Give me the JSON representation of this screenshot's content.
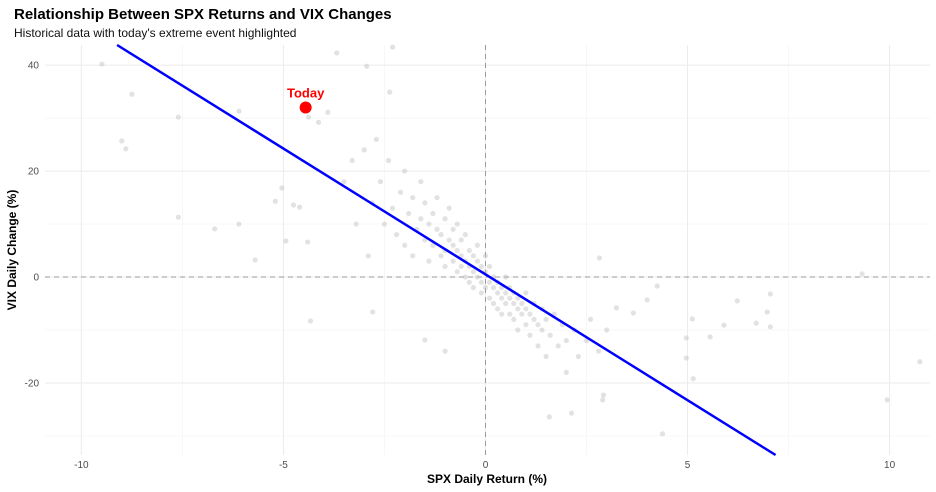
{
  "chart_data": {
    "type": "scatter",
    "title": "Relationship Between SPX Returns and VIX Changes",
    "subtitle": "Historical data with today's extreme event highlighted",
    "xlabel": "SPX Daily Return (%)",
    "ylabel": "VIX Daily Change (%)",
    "xlim": [
      -10.9,
      11.0
    ],
    "ylim": [
      -33.6,
      43.8
    ],
    "xticks": [
      -10,
      -5,
      0,
      5,
      10
    ],
    "yticks": [
      -20,
      0,
      20,
      40
    ],
    "grid": true,
    "reference_lines": {
      "x": 0,
      "y": 0,
      "style": "dashed"
    },
    "colors": {
      "points": "#bebebe",
      "regression": "#0000ff",
      "highlight": "#ff0000",
      "reference": "#999999"
    },
    "regression": {
      "intercept": 0.5,
      "slope": -4.75
    },
    "highlight": {
      "label": "Today",
      "x": -4.45,
      "y": 32
    },
    "points": [
      [
        -9.49,
        40.2
      ],
      [
        -8.75,
        34.5
      ],
      [
        -9.0,
        25.7
      ],
      [
        -8.9,
        24.2
      ],
      [
        -7.6,
        30.2
      ],
      [
        -7.6,
        11.3
      ],
      [
        -6.7,
        9.1
      ],
      [
        -6.1,
        31.3
      ],
      [
        -6.1,
        10
      ],
      [
        -5.7,
        3.2
      ],
      [
        -5.2,
        14.3
      ],
      [
        -5.04,
        16.8
      ],
      [
        -4.94,
        6.8
      ],
      [
        -4.75,
        13.6
      ],
      [
        -4.6,
        13.2
      ],
      [
        -4.4,
        6.6
      ],
      [
        -4.33,
        -8.3
      ],
      [
        -4.38,
        30.2
      ],
      [
        -4.13,
        29.2
      ],
      [
        -3.68,
        42.3
      ],
      [
        -3.9,
        31.1
      ],
      [
        -2.94,
        39.8
      ],
      [
        -2.3,
        43.4
      ],
      [
        -2.79,
        -6.6
      ],
      [
        -2.37,
        34.9
      ],
      [
        -1.5,
        -11.9
      ],
      [
        -1.0,
        -14
      ],
      [
        1.58,
        -26.4
      ],
      [
        2.13,
        -25.7
      ],
      [
        2.92,
        -22.3
      ],
      [
        2.9,
        -23.2
      ],
      [
        4.38,
        -29.6
      ],
      [
        5.14,
        -19.2
      ],
      [
        4.97,
        -15.3
      ],
      [
        5.12,
        -7.9
      ],
      [
        5.56,
        -11.3
      ],
      [
        6.23,
        -4.5
      ],
      [
        7.05,
        -3.2
      ],
      [
        7.05,
        -9.4
      ],
      [
        6.97,
        -6.6
      ],
      [
        6.7,
        -8.7
      ],
      [
        5.9,
        -9.1
      ],
      [
        9.94,
        -23.2
      ],
      [
        9.32,
        0.6
      ],
      [
        10.75,
        -16
      ],
      [
        2.82,
        3.6
      ],
      [
        3.24,
        -5.8
      ],
      [
        3.66,
        -6.8
      ],
      [
        4.0,
        -4.3
      ],
      [
        4.25,
        -1.7
      ],
      [
        4.97,
        -11.5
      ],
      [
        -2.8,
        14
      ],
      [
        -2.6,
        18
      ],
      [
        -2.5,
        10
      ],
      [
        -2.4,
        22
      ],
      [
        -2.3,
        13
      ],
      [
        -2.2,
        8
      ],
      [
        -2.1,
        16
      ],
      [
        -2,
        20
      ],
      [
        -2,
        6
      ],
      [
        -1.9,
        12
      ],
      [
        -1.8,
        15
      ],
      [
        -1.8,
        4
      ],
      [
        -1.7,
        9
      ],
      [
        -1.6,
        18
      ],
      [
        -1.6,
        11
      ],
      [
        -1.5,
        7
      ],
      [
        -1.5,
        14
      ],
      [
        -1.4,
        3
      ],
      [
        -1.4,
        10
      ],
      [
        -1.3,
        12
      ],
      [
        -1.3,
        6
      ],
      [
        -1.2,
        9
      ],
      [
        -1.2,
        15
      ],
      [
        -1.1,
        4
      ],
      [
        -1.1,
        8
      ],
      [
        -1,
        11
      ],
      [
        -1,
        5
      ],
      [
        -1,
        2
      ],
      [
        -0.9,
        7
      ],
      [
        -0.9,
        13
      ],
      [
        -0.8,
        3
      ],
      [
        -0.8,
        6
      ],
      [
        -0.8,
        9
      ],
      [
        -0.7,
        1
      ],
      [
        -0.7,
        5
      ],
      [
        -0.7,
        10
      ],
      [
        -0.6,
        2
      ],
      [
        -0.6,
        7
      ],
      [
        -0.6,
        4
      ],
      [
        -0.5,
        0
      ],
      [
        -0.5,
        3
      ],
      [
        -0.5,
        8
      ],
      [
        -0.4,
        -1
      ],
      [
        -0.4,
        2
      ],
      [
        -0.4,
        5
      ],
      [
        -0.3,
        1
      ],
      [
        -0.3,
        4
      ],
      [
        -0.3,
        -2
      ],
      [
        -0.2,
        0
      ],
      [
        -0.2,
        3
      ],
      [
        -0.2,
        6
      ],
      [
        -0.1,
        -1
      ],
      [
        -0.1,
        2
      ],
      [
        -0.1,
        -3
      ],
      [
        0,
        1
      ],
      [
        0,
        -2
      ],
      [
        0,
        4
      ],
      [
        0.1,
        -1
      ],
      [
        0.1,
        -4
      ],
      [
        0.1,
        2
      ],
      [
        0.2,
        -2
      ],
      [
        0.2,
        -5
      ],
      [
        0.2,
        0
      ],
      [
        0.3,
        -3
      ],
      [
        0.3,
        -1
      ],
      [
        0.3,
        -6
      ],
      [
        0.4,
        -2
      ],
      [
        0.4,
        -4
      ],
      [
        0.4,
        -7
      ],
      [
        0.5,
        -3
      ],
      [
        0.5,
        -5
      ],
      [
        0.5,
        0
      ],
      [
        0.6,
        -4
      ],
      [
        0.6,
        -7
      ],
      [
        0.6,
        -2
      ],
      [
        0.7,
        -5
      ],
      [
        0.7,
        -8
      ],
      [
        0.7,
        -3
      ],
      [
        0.8,
        -6
      ],
      [
        0.8,
        -4
      ],
      [
        0.8,
        -10
      ],
      [
        0.9,
        -5
      ],
      [
        0.9,
        -7
      ],
      [
        1,
        -6
      ],
      [
        1,
        -9
      ],
      [
        1,
        -3
      ],
      [
        1.1,
        -7
      ],
      [
        1.1,
        -11
      ],
      [
        1.2,
        -5
      ],
      [
        1.2,
        -8
      ],
      [
        1.3,
        -9
      ],
      [
        1.3,
        -13
      ],
      [
        1.4,
        -6
      ],
      [
        1.4,
        -10
      ],
      [
        1.5,
        -8
      ],
      [
        1.5,
        -15
      ],
      [
        1.6,
        -11
      ],
      [
        1.7,
        -7
      ],
      [
        1.8,
        -13
      ],
      [
        1.9,
        -9
      ],
      [
        2,
        -12
      ],
      [
        2,
        -18
      ],
      [
        2.2,
        -10
      ],
      [
        2.3,
        -15
      ],
      [
        2.5,
        -12
      ],
      [
        2.6,
        -8
      ],
      [
        2.8,
        -14
      ],
      [
        3,
        -10
      ],
      [
        -3,
        24
      ],
      [
        -3.2,
        10
      ],
      [
        -2.7,
        26
      ],
      [
        -3.5,
        18
      ],
      [
        -2.9,
        4
      ],
      [
        -3.3,
        22
      ]
    ]
  }
}
